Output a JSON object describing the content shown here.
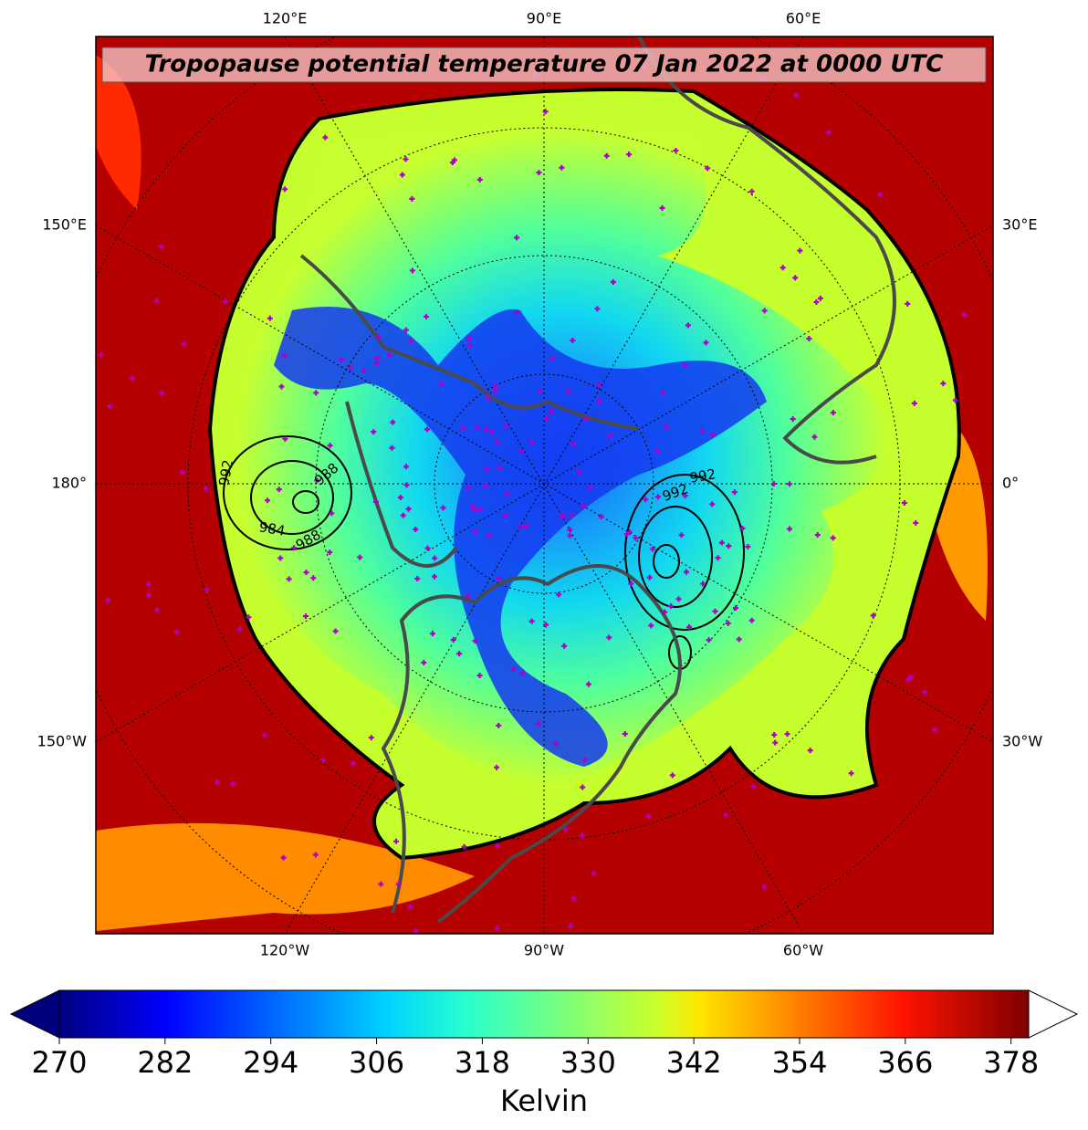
{
  "title": "Tropopause potential temperature 07 Jan 2022 at 0000 UTC",
  "map": {
    "top_labels": [
      "120°E",
      "90°E",
      "60°E"
    ],
    "left_labels": [
      "150°E",
      "180°",
      "150°W"
    ],
    "right_labels": [
      "30°E",
      "0°",
      "30°W"
    ],
    "bottom_labels": [
      "120°W",
      "90°W",
      "60°W"
    ],
    "contour_labels": [
      992,
      988,
      984,
      988,
      992,
      992
    ]
  },
  "colorbar": {
    "lim": [
      270,
      380
    ],
    "ticks": [
      270,
      282,
      294,
      306,
      318,
      330,
      342,
      354,
      366,
      378
    ],
    "label": "Kelvin"
  }
}
